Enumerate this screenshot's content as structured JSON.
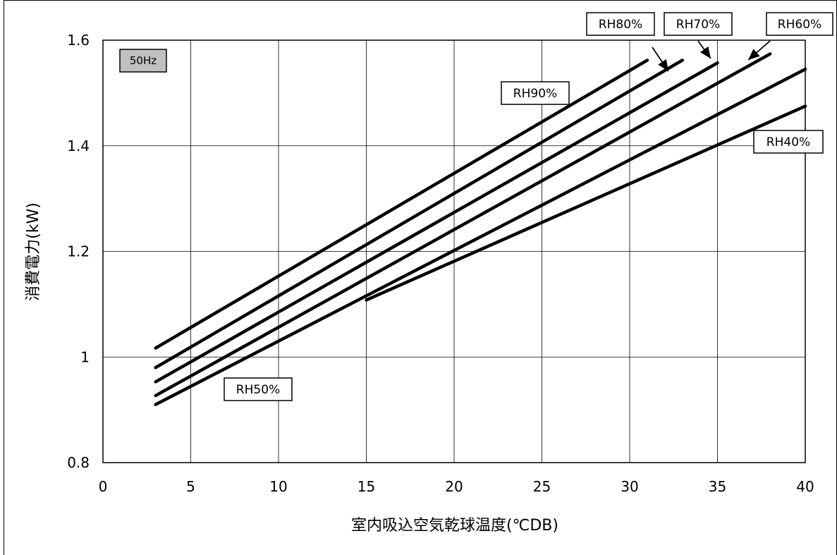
{
  "chart_data": {
    "type": "line",
    "badge": "50Hz",
    "xlabel": "室内吸込空気乾球温度(℃DB)",
    "ylabel": "消費電力(kW)",
    "xlim": [
      0,
      40
    ],
    "ylim": [
      0.8,
      1.6
    ],
    "xticks": [
      "0",
      "5",
      "10",
      "15",
      "20",
      "25",
      "30",
      "35",
      "40"
    ],
    "yticks": [
      "0.8",
      "1",
      "1.2",
      "1.4",
      "1.6"
    ],
    "grid": true,
    "series": [
      {
        "name": "RH90%",
        "x": [
          3,
          31
        ],
        "y": [
          1.017,
          1.562
        ]
      },
      {
        "name": "RH80%",
        "x": [
          3,
          33
        ],
        "y": [
          0.98,
          1.562
        ]
      },
      {
        "name": "RH70%",
        "x": [
          3,
          35
        ],
        "y": [
          0.953,
          1.557
        ]
      },
      {
        "name": "RH60%",
        "x": [
          3,
          38
        ],
        "y": [
          0.927,
          1.574
        ]
      },
      {
        "name": "RH50%",
        "x": [
          3,
          40
        ],
        "y": [
          0.91,
          1.545
        ]
      },
      {
        "name": "RH40%",
        "x": [
          15,
          40
        ],
        "y": [
          1.108,
          1.475
        ]
      }
    ],
    "labels": [
      {
        "text": "RH90%"
      },
      {
        "text": "RH80%"
      },
      {
        "text": "RH70%"
      },
      {
        "text": "RH60%"
      },
      {
        "text": "RH50%"
      },
      {
        "text": "RH40%"
      }
    ]
  }
}
